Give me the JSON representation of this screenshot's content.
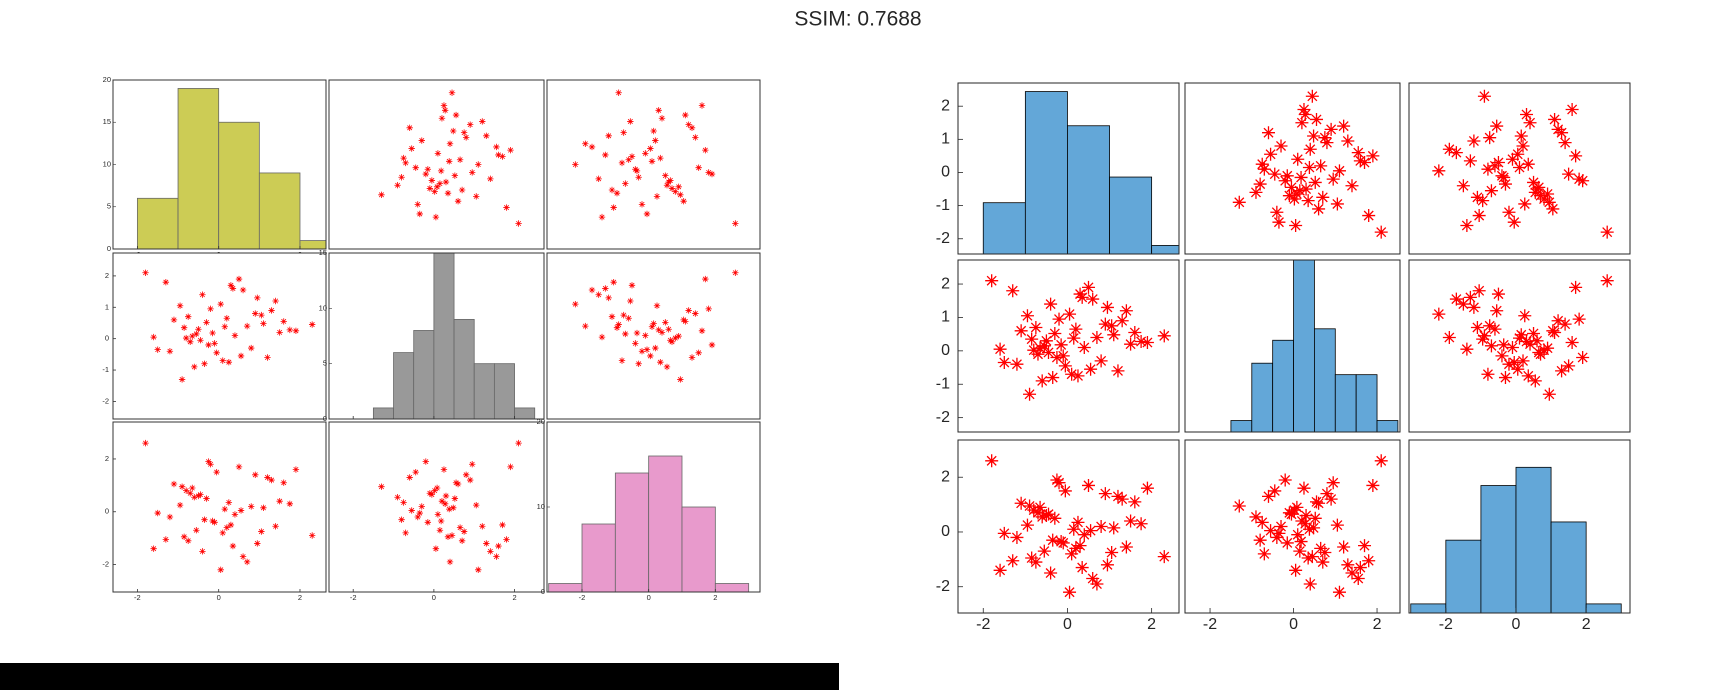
{
  "title": "SSIM: 0.7688",
  "chart_data": [
    {
      "type": "scatter-matrix",
      "marker_color": "#ff0000",
      "edge_color": "#666666",
      "frame_color": "#333333",
      "diagonal_tick_labels": true,
      "variables": [
        [
          -0.5,
          1.2,
          0.3,
          -1.6,
          0.8,
          -0.2,
          2.3,
          -0.9,
          0.05,
          1.5,
          -0.35,
          -1.1,
          0.6,
          -0.7,
          0.15,
          1.05,
          -0.05,
          -1.8,
          0.4,
          -0.6,
          0.95,
          1.75,
          -0.25,
          0.2,
          -0.8,
          -1.3,
          0.55,
          -0.15,
          1.3,
          -0.45,
          0.7,
          -0.95,
          0.1,
          1.9,
          -0.3,
          -1.5,
          0.35,
          -0.65,
          0.9,
          -0.1,
          1.1,
          -0.4,
          0.25,
          -0.85,
          1.6,
          -1.2,
          0.5,
          -0.55,
          -0.75,
          1.4
        ],
        [
          0.3,
          -0.6,
          1.7,
          0.05,
          -0.3,
          0.95,
          0.45,
          -1.3,
          1.1,
          0.2,
          -0.8,
          0.6,
          1.55,
          -0.1,
          0.38,
          0.75,
          -0.45,
          2.1,
          0.1,
          -0.9,
          1.3,
          0.28,
          -0.2,
          0.65,
          0.02,
          1.8,
          -0.55,
          0.18,
          0.9,
          -0.05,
          0.4,
          1.05,
          -0.7,
          0.25,
          0.52,
          -0.35,
          1.6,
          0.08,
          0.8,
          -0.15,
          0.48,
          1.4,
          -0.75,
          0.35,
          0.55,
          -0.4,
          1.9,
          0.15,
          0.7,
          1.2
        ],
        [
          0.6,
          1.3,
          -0.5,
          -1.4,
          0.2,
          1.8,
          -0.9,
          0.95,
          -2.2,
          0.4,
          -0.3,
          1.05,
          -1.7,
          0.7,
          0.1,
          -0.75,
          1.5,
          2.6,
          -0.1,
          0.55,
          -1.2,
          0.3,
          1.9,
          -0.6,
          0.8,
          -1.05,
          0.05,
          -0.35,
          1.2,
          0.65,
          -1.9,
          0.25,
          -0.8,
          1.6,
          0.5,
          -0.05,
          -1.3,
          0.9,
          1.4,
          -0.4,
          0.15,
          -1.5,
          0.35,
          -0.95,
          1.1,
          -0.2,
          1.7,
          -0.7,
          -1.1,
          -0.55
        ]
      ],
      "histograms": [
        {
          "bins": [
            -2,
            -1,
            0,
            1,
            2,
            3
          ],
          "counts": [
            6,
            19,
            15,
            9,
            1
          ],
          "color": "#cccc55",
          "ylim": [
            0,
            20
          ],
          "yticks": [
            0,
            5,
            10,
            15,
            20
          ]
        },
        {
          "bins": [
            -1.5,
            -1,
            -0.5,
            0,
            0.5,
            1,
            1.5,
            2,
            2.5
          ],
          "counts": [
            1,
            6,
            8,
            15,
            9,
            5,
            5,
            1
          ],
          "color": "#999999",
          "ylim": [
            0,
            15
          ],
          "yticks": [
            0,
            5,
            10,
            15
          ]
        },
        {
          "bins": [
            -3,
            -2,
            -1,
            0,
            1,
            2,
            3
          ],
          "counts": [
            1,
            8,
            14,
            16,
            10,
            1
          ],
          "color": "#e89acc",
          "ylim": [
            0,
            20
          ],
          "yticks": [
            0,
            10,
            20
          ]
        }
      ],
      "xlims": [
        [
          -2.6,
          2.64
        ],
        [
          -2.6,
          2.73
        ],
        [
          -3.05,
          3.34
        ]
      ],
      "xticks": [
        [
          -2,
          0,
          2
        ],
        [
          -2,
          0,
          2
        ],
        [
          -2,
          0,
          2
        ]
      ],
      "ylims": [
        [
          -2.6,
          2.7
        ],
        [
          -2.56,
          2.73
        ],
        [
          -3.04,
          3.4
        ]
      ],
      "yticks": [
        [],
        [
          -2,
          -1,
          0,
          1,
          2
        ],
        [
          -2,
          0,
          2
        ]
      ]
    },
    {
      "type": "scatter-matrix",
      "marker_color": "#ff0000",
      "edge_color": "#000000",
      "frame_color": "#262626",
      "diagonal_tick_labels": false,
      "variables": [
        [
          -0.5,
          1.2,
          0.3,
          -1.6,
          0.8,
          -0.2,
          2.3,
          -0.9,
          0.05,
          1.5,
          -0.35,
          -1.1,
          0.6,
          -0.7,
          0.15,
          1.05,
          -0.05,
          -1.8,
          0.4,
          -0.6,
          0.95,
          1.75,
          -0.25,
          0.2,
          -0.8,
          -1.3,
          0.55,
          -0.15,
          1.3,
          -0.45,
          0.7,
          -0.95,
          0.1,
          1.9,
          -0.3,
          -1.5,
          0.35,
          -0.65,
          0.9,
          -0.1,
          1.1,
          -0.4,
          0.25,
          -0.85,
          1.6,
          -1.2,
          0.5,
          -0.55,
          -0.75,
          1.4
        ],
        [
          0.3,
          -0.6,
          1.7,
          0.05,
          -0.3,
          0.95,
          0.45,
          -1.3,
          1.1,
          0.2,
          -0.8,
          0.6,
          1.55,
          -0.1,
          0.38,
          0.75,
          -0.45,
          2.1,
          0.1,
          -0.9,
          1.3,
          0.28,
          -0.2,
          0.65,
          0.02,
          1.8,
          -0.55,
          0.18,
          0.9,
          -0.05,
          0.4,
          1.05,
          -0.7,
          0.25,
          0.52,
          -0.35,
          1.6,
          0.08,
          0.8,
          -0.15,
          0.48,
          1.4,
          -0.75,
          0.35,
          0.55,
          -0.4,
          1.9,
          0.15,
          0.7,
          1.2
        ],
        [
          0.6,
          1.3,
          -0.5,
          -1.4,
          0.2,
          1.8,
          -0.9,
          0.95,
          -2.2,
          0.4,
          -0.3,
          1.05,
          -1.7,
          0.7,
          0.1,
          -0.75,
          1.5,
          2.6,
          -0.1,
          0.55,
          -1.2,
          0.3,
          1.9,
          -0.6,
          0.8,
          -1.05,
          0.05,
          -0.35,
          1.2,
          0.65,
          -1.9,
          0.25,
          -0.8,
          1.6,
          0.5,
          -0.05,
          -1.3,
          0.9,
          1.4,
          -0.4,
          0.15,
          -1.5,
          0.35,
          -0.95,
          1.1,
          -0.2,
          1.7,
          -0.7,
          -1.1,
          -0.55
        ]
      ],
      "histograms": [
        {
          "bins": [
            -2,
            -1,
            0,
            1,
            2,
            3
          ],
          "counts": [
            6,
            19,
            15,
            9,
            1
          ],
          "color": "#63a7d8",
          "ylim": [
            0,
            20
          ]
        },
        {
          "bins": [
            -1.5,
            -1,
            -0.5,
            0,
            0.5,
            1,
            1.5,
            2,
            2.5
          ],
          "counts": [
            1,
            6,
            8,
            15,
            9,
            5,
            5,
            1
          ],
          "color": "#63a7d8",
          "ylim": [
            0,
            15
          ]
        },
        {
          "bins": [
            -3,
            -2,
            -1,
            0,
            1,
            2,
            3
          ],
          "counts": [
            1,
            8,
            14,
            16,
            10,
            1
          ],
          "color": "#63a7d8",
          "ylim": [
            0,
            19
          ]
        }
      ],
      "xlims": [
        [
          -2.6,
          2.65
        ],
        [
          -2.6,
          2.55
        ],
        [
          -3.05,
          3.25
        ]
      ],
      "xticks": [
        [
          -2,
          0,
          2
        ],
        [
          -2,
          0,
          2
        ],
        [
          -2,
          0,
          2
        ]
      ],
      "ylims": [
        [
          -2.46,
          2.7
        ],
        [
          -2.43,
          2.72
        ],
        [
          -2.96,
          3.36
        ]
      ],
      "yticks": [
        [
          -2,
          -1,
          0,
          1,
          2
        ],
        [
          -2,
          -1,
          0,
          1,
          2
        ],
        [
          -2,
          0,
          2
        ]
      ]
    }
  ]
}
